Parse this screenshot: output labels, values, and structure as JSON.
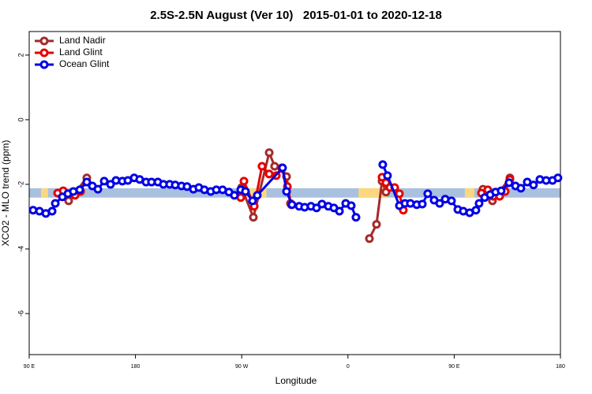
{
  "chart_data": {
    "type": "line",
    "title": "2.5S-2.5N August (Ver 10)   2015-01-01 to 2020-12-18",
    "x_label": "Longitude",
    "y_label": "XCO2 - MLO trend (ppm)",
    "xlim": [
      90,
      540
    ],
    "ylim": [
      -7.27,
      2.73
    ],
    "xticks": [
      {
        "value": 90,
        "label": "90 E"
      },
      {
        "value": 180,
        "label": "180"
      },
      {
        "value": 270,
        "label": "90 W"
      },
      {
        "value": 360,
        "label": "0"
      },
      {
        "value": 450,
        "label": "90 E"
      },
      {
        "value": 540,
        "label": "180"
      }
    ],
    "yticks": [
      2,
      0,
      -2,
      -4,
      -6
    ],
    "legend": "top-left",
    "band": {
      "ylim": [
        -2.41,
        -2.12
      ],
      "color": "#a9c0df",
      "land_color": "#fcd77f",
      "land_segments": [
        [
          100,
          106
        ],
        [
          266,
          291
        ],
        [
          369,
          393
        ],
        [
          459,
          467
        ]
      ]
    },
    "series": [
      {
        "name": "Land Nadir",
        "color": "#a52a2a",
        "x": [
          123.4,
          138.8,
          null,
          269.9,
          279.9,
          293.3,
          297.9,
          304.0,
          308.0,
          311.3,
          null,
          378.2,
          384.2,
          388.9,
          392.2,
          null,
          474.4,
          482.4,
          497.2
        ],
        "values": [
          -2.51,
          -1.8,
          null,
          -2.1,
          -3.02,
          -1.02,
          -1.44,
          -1.49,
          -1.76,
          -2.59,
          null,
          -3.68,
          -3.24,
          -1.9,
          -2.24,
          null,
          -2.15,
          -2.51,
          -1.8
        ]
      },
      {
        "name": "Land Glint",
        "color": "#e60000",
        "x": [
          114.1,
          118.8,
          128.8,
          133.5,
          null,
          269.2,
          271.9,
          280.6,
          287.2,
          293.3,
          299.3,
          304.0,
          308.7,
          312.0,
          null,
          388.9,
          392.2,
          395.6,
          399.6,
          403.6,
          406.9,
          null,
          473.1,
          478.5,
          483.1,
          488.5,
          493.2,
          497.2
        ],
        "values": [
          -2.27,
          -2.2,
          -2.34,
          -2.22,
          null,
          -2.41,
          -1.9,
          -2.68,
          -1.44,
          -1.68,
          -1.73,
          -1.51,
          -2.07,
          -2.63,
          null,
          -1.78,
          -1.95,
          -2.1,
          -2.1,
          -2.29,
          -2.8,
          null,
          -2.27,
          -2.17,
          -2.37,
          -2.37,
          -2.22,
          -1.85
        ]
      },
      {
        "name": "Ocean Glint",
        "color": "#0000e6",
        "x": [
          93.3,
          98.7,
          104.1,
          109.4,
          112.1,
          118.1,
          122.8,
          127.4,
          132.8,
          138.8,
          143.5,
          148.2,
          153.5,
          158.9,
          163.5,
          168.9,
          173.6,
          178.9,
          183.6,
          189.0,
          193.6,
          199.0,
          203.7,
          209.0,
          213.7,
          219.0,
          223.7,
          229.1,
          233.7,
          238.4,
          243.8,
          248.5,
          253.8,
          259.2,
          263.8,
          269.2,
          273.2,
          279.2,
          283.2,
          304.6,
          308.0,
          312.6,
          318.7,
          323.3,
          328.7,
          333.4,
          338.0,
          343.4,
          348.1,
          352.8,
          358.1,
          362.8,
          366.8,
          null,
          389.5,
          393.5,
          403.6,
          408.3,
          412.9,
          418.3,
          423.0,
          427.6,
          433.0,
          437.7,
          442.4,
          447.7,
          453.1,
          457.7,
          463.1,
          468.4,
          471.1,
          475.8,
          480.5,
          485.1,
          489.8,
          496.5,
          501.9,
          506.5,
          511.9,
          517.2,
          522.6,
          527.9,
          533.3,
          537.9
        ],
        "values": [
          -2.8,
          -2.83,
          -2.9,
          -2.83,
          -2.59,
          -2.39,
          -2.29,
          -2.22,
          -2.17,
          -1.93,
          -2.05,
          -2.15,
          -1.9,
          -2.0,
          -1.88,
          -1.9,
          -1.88,
          -1.8,
          -1.85,
          -1.93,
          -1.93,
          -1.93,
          -2.0,
          -2.0,
          -2.02,
          -2.05,
          -2.07,
          -2.15,
          -2.1,
          -2.17,
          -2.22,
          -2.17,
          -2.17,
          -2.24,
          -2.34,
          -2.17,
          -2.22,
          -2.51,
          -2.34,
          -1.49,
          -2.22,
          -2.63,
          -2.68,
          -2.71,
          -2.68,
          -2.73,
          -2.61,
          -2.68,
          -2.73,
          -2.83,
          -2.59,
          -2.66,
          -3.02,
          null,
          -1.39,
          -1.73,
          -2.66,
          -2.59,
          -2.59,
          -2.63,
          -2.61,
          -2.29,
          -2.49,
          -2.59,
          -2.46,
          -2.51,
          -2.78,
          -2.83,
          -2.88,
          -2.8,
          -2.59,
          -2.41,
          -2.32,
          -2.24,
          -2.2,
          -1.95,
          -2.05,
          -2.12,
          -1.93,
          -2.02,
          -1.85,
          -1.88,
          -1.88,
          -1.8
        ]
      }
    ]
  }
}
